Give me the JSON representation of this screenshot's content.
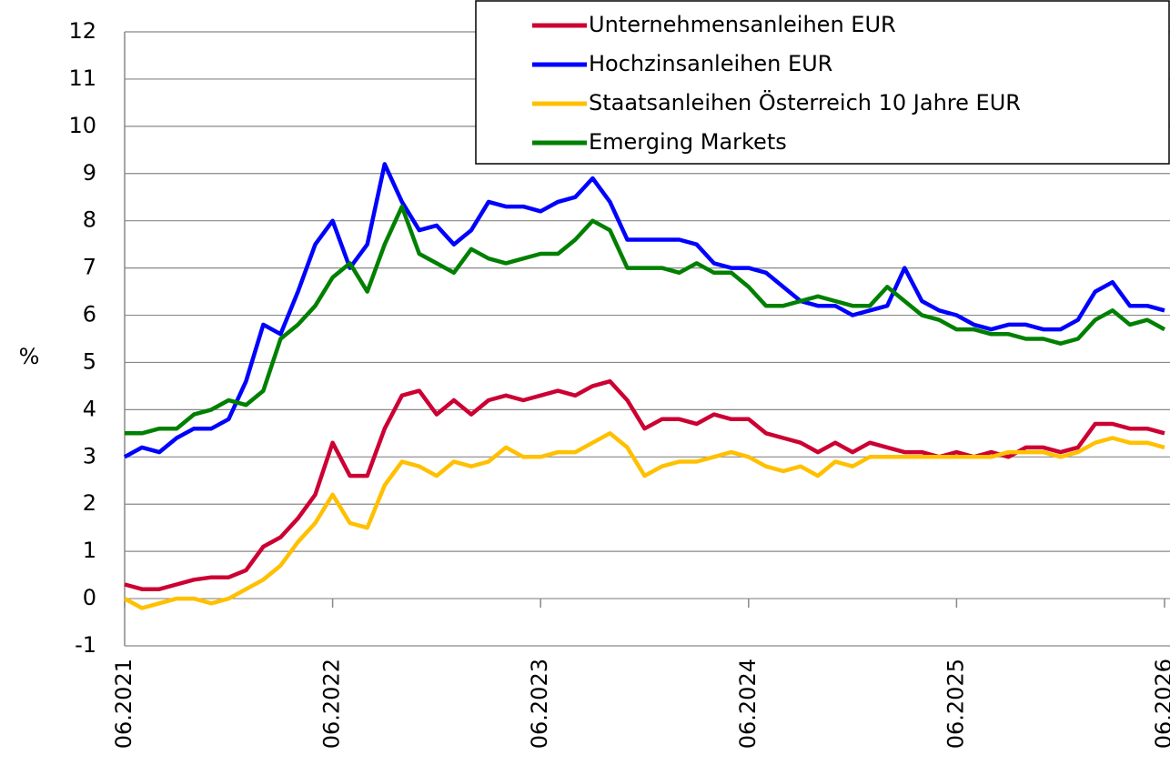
{
  "chart_data": {
    "type": "line",
    "ylabel": "%",
    "x": [
      "06.2021",
      "07.2021",
      "08.2021",
      "09.2021",
      "10.2021",
      "11.2021",
      "12.2021",
      "01.2022",
      "02.2022",
      "03.2022",
      "04.2022",
      "05.2022",
      "06.2022",
      "07.2022",
      "08.2022",
      "09.2022",
      "10.2022",
      "11.2022",
      "12.2022",
      "01.2023",
      "02.2023",
      "03.2023",
      "04.2023",
      "05.2023",
      "06.2023",
      "07.2023",
      "08.2023",
      "09.2023",
      "10.2023",
      "11.2023",
      "12.2023",
      "01.2024",
      "02.2024",
      "03.2024",
      "04.2024",
      "05.2024",
      "06.2024",
      "07.2024",
      "08.2024",
      "09.2024",
      "10.2024",
      "11.2024",
      "12.2024",
      "01.2025",
      "02.2025",
      "03.2025",
      "04.2025",
      "05.2025",
      "06.2025",
      "07.2025",
      "08.2025",
      "09.2025",
      "10.2025",
      "11.2025",
      "12.2025",
      "01.2026",
      "02.2026",
      "03.2026",
      "04.2026",
      "05.2026",
      "06.2026"
    ],
    "xticks": [
      "06.2021",
      "06.2022",
      "06.2023",
      "06.2024",
      "06.2025",
      "06.2026"
    ],
    "ylim": [
      -1,
      12
    ],
    "yticks": [
      -1,
      0,
      1,
      2,
      3,
      4,
      5,
      6,
      7,
      8,
      9,
      10,
      11,
      12
    ],
    "grid": true,
    "legend": "upper right",
    "series": [
      {
        "name": "Unternehmensanleihen EUR",
        "color": "#cc0033",
        "values": [
          0.3,
          0.2,
          0.2,
          0.3,
          0.4,
          0.45,
          0.45,
          0.6,
          1.1,
          1.3,
          1.7,
          2.2,
          3.3,
          2.6,
          2.6,
          3.6,
          4.3,
          4.4,
          3.9,
          4.2,
          3.9,
          4.2,
          4.3,
          4.2,
          4.3,
          4.4,
          4.3,
          4.5,
          4.6,
          4.2,
          3.6,
          3.8,
          3.8,
          3.7,
          3.9,
          3.8,
          3.8,
          3.5,
          3.4,
          3.3,
          3.1,
          3.3,
          3.1,
          3.3,
          3.2,
          3.1,
          3.1,
          3.0,
          3.1,
          3.0,
          3.1,
          3.0,
          3.2,
          3.2,
          3.1,
          3.2,
          3.7,
          3.7,
          3.6,
          3.6,
          3.5
        ]
      },
      {
        "name": "Hochzinsanleihen EUR",
        "color": "#0000ff",
        "values": [
          3.0,
          3.2,
          3.1,
          3.4,
          3.6,
          3.6,
          3.8,
          4.6,
          5.8,
          5.6,
          6.5,
          7.5,
          8.0,
          7.0,
          7.5,
          9.2,
          8.4,
          7.8,
          7.9,
          7.5,
          7.8,
          8.4,
          8.3,
          8.3,
          8.2,
          8.4,
          8.5,
          8.9,
          8.4,
          7.6,
          7.6,
          7.6,
          7.6,
          7.5,
          7.1,
          7.0,
          7.0,
          6.9,
          6.6,
          6.3,
          6.2,
          6.2,
          6.0,
          6.1,
          6.2,
          7.0,
          6.3,
          6.1,
          6.0,
          5.8,
          5.7,
          5.8,
          5.8,
          5.7,
          5.7,
          5.9,
          6.5,
          6.7,
          6.2,
          6.2,
          6.1
        ]
      },
      {
        "name": "Staatsanleihen Österreich 10 Jahre EUR",
        "color": "#ffc000",
        "values": [
          0.0,
          -0.2,
          -0.1,
          0.0,
          0.0,
          -0.1,
          0.0,
          0.2,
          0.4,
          0.7,
          1.2,
          1.6,
          2.2,
          1.6,
          1.5,
          2.4,
          2.9,
          2.8,
          2.6,
          2.9,
          2.8,
          2.9,
          3.2,
          3.0,
          3.0,
          3.1,
          3.1,
          3.3,
          3.5,
          3.2,
          2.6,
          2.8,
          2.9,
          2.9,
          3.0,
          3.1,
          3.0,
          2.8,
          2.7,
          2.8,
          2.6,
          2.9,
          2.8,
          3.0,
          3.0,
          3.0,
          3.0,
          3.0,
          3.0,
          3.0,
          3.0,
          3.1,
          3.1,
          3.1,
          3.0,
          3.1,
          3.3,
          3.4,
          3.3,
          3.3,
          3.2
        ]
      },
      {
        "name": "Emerging Markets",
        "color": "#008000",
        "values": [
          3.5,
          3.5,
          3.6,
          3.6,
          3.9,
          4.0,
          4.2,
          4.1,
          4.4,
          5.5,
          5.8,
          6.2,
          6.8,
          7.1,
          6.5,
          7.5,
          8.3,
          7.3,
          7.1,
          6.9,
          7.4,
          7.2,
          7.1,
          7.2,
          7.3,
          7.3,
          7.6,
          8.0,
          7.8,
          7.0,
          7.0,
          7.0,
          6.9,
          7.1,
          6.9,
          6.9,
          6.6,
          6.2,
          6.2,
          6.3,
          6.4,
          6.3,
          6.2,
          6.2,
          6.6,
          6.3,
          6.0,
          5.9,
          5.7,
          5.7,
          5.6,
          5.6,
          5.5,
          5.5,
          5.4,
          5.5,
          5.9,
          6.1,
          5.8,
          5.9,
          5.7
        ]
      }
    ]
  }
}
